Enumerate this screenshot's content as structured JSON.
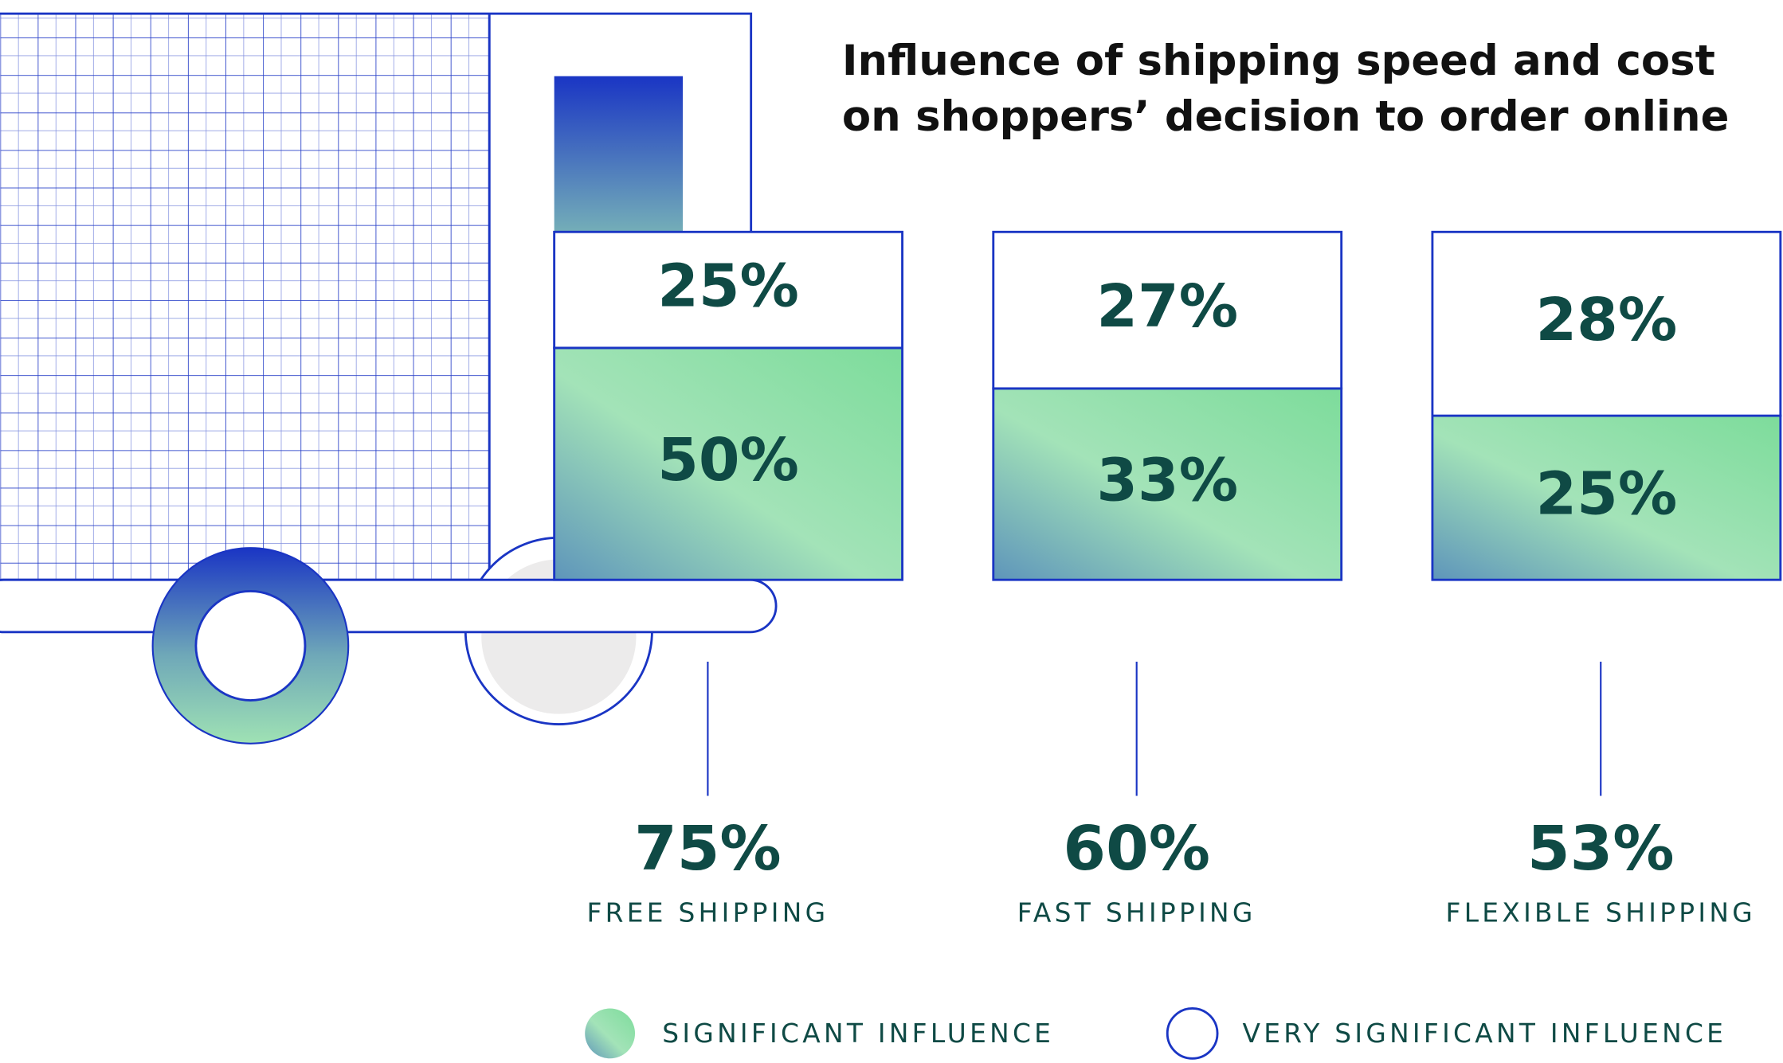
{
  "chart_data": {
    "type": "bar",
    "stacked": true,
    "normalized": true,
    "title_lines": [
      "Influence of shipping speed and cost",
      "on shoppers’ decision to order online"
    ],
    "categories": [
      "FREE SHIPPING",
      "FAST SHIPPING",
      "FLEXIBLE SHIPPING"
    ],
    "series": [
      {
        "name": "SIGNIFICANT INFLUENCE",
        "color": "#7ddc9b",
        "values": [
          50,
          33,
          25
        ],
        "value_labels": [
          "50%",
          "33%",
          "25%"
        ]
      },
      {
        "name": "VERY SIGNIFICANT INFLUENCE",
        "color": "#ffffff",
        "values": [
          25,
          27,
          28
        ],
        "value_labels": [
          "25%",
          "27%",
          "28%"
        ]
      }
    ],
    "totals": [
      75,
      60,
      53
    ],
    "total_labels": [
      "75%",
      "60%",
      "53%"
    ]
  }
}
